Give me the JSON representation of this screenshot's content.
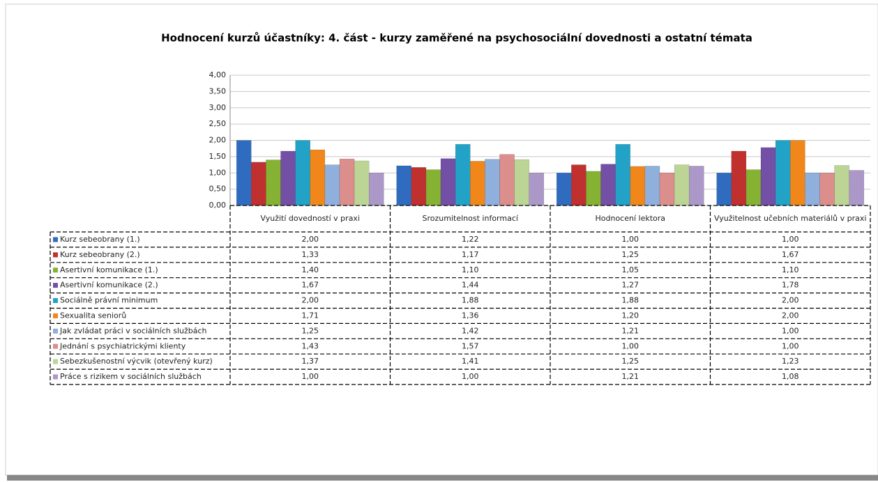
{
  "chart_data": {
    "type": "bar",
    "title": "Hodnocení kurzů účastníky: 4. část - kurzy zaměřené na psychosociální dovednosti a ostatní témata",
    "categories": [
      "Využití dovedností v praxi",
      "Srozumitelnost informací",
      "Hodnocení lektora",
      "Využitelnost učebních materiálů v praxi"
    ],
    "ylim": [
      0,
      4
    ],
    "yticks": [
      {
        "value": 0,
        "label": "0,00"
      },
      {
        "value": 0.5,
        "label": "0,50"
      },
      {
        "value": 1,
        "label": "1,00"
      },
      {
        "value": 1.5,
        "label": "1,50"
      },
      {
        "value": 2,
        "label": "2,00"
      },
      {
        "value": 2.5,
        "label": "2,50"
      },
      {
        "value": 3,
        "label": "3,00"
      },
      {
        "value": 3.5,
        "label": "3,50"
      },
      {
        "value": 4,
        "label": "4,00"
      }
    ],
    "grid": true,
    "series": [
      {
        "name": "Kurz sebeobrany (1.)",
        "color": "#2f6cc0",
        "values": [
          2.0,
          1.22,
          1.0,
          1.0
        ],
        "value_labels": [
          "2,00",
          "1,22",
          "1,00",
          "1,00"
        ]
      },
      {
        "name": "Kurz sebeobrany (2.)",
        "color": "#c0302e",
        "values": [
          1.33,
          1.17,
          1.25,
          1.67
        ],
        "value_labels": [
          "1,33",
          "1,17",
          "1,25",
          "1,67"
        ]
      },
      {
        "name": "Asertivní komunikace (1.)",
        "color": "#86b233",
        "values": [
          1.4,
          1.1,
          1.05,
          1.1
        ],
        "value_labels": [
          "1,40",
          "1,10",
          "1,05",
          "1,10"
        ]
      },
      {
        "name": "Asertivní komunikace (2.)",
        "color": "#7350a6",
        "values": [
          1.67,
          1.44,
          1.27,
          1.78
        ],
        "value_labels": [
          "1,67",
          "1,44",
          "1,27",
          "1,78"
        ]
      },
      {
        "name": "Sociálně právní minimum",
        "color": "#22a2c6",
        "values": [
          2.0,
          1.88,
          1.88,
          2.0
        ],
        "value_labels": [
          "2,00",
          "1,88",
          "1,88",
          "2,00"
        ]
      },
      {
        "name": "Sexualita seniorů",
        "color": "#f1861a",
        "values": [
          1.71,
          1.36,
          1.2,
          2.0
        ],
        "value_labels": [
          "1,71",
          "1,36",
          "1,20",
          "2,00"
        ]
      },
      {
        "name": "Jak zvládat práci v sociálních službách",
        "color": "#8fb0dc",
        "values": [
          1.25,
          1.42,
          1.21,
          1.0
        ],
        "value_labels": [
          "1,25",
          "1,42",
          "1,21",
          "1,00"
        ]
      },
      {
        "name": "Jednání s psychiatrickými klienty",
        "color": "#dc8e8c",
        "values": [
          1.43,
          1.57,
          1.0,
          1.0
        ],
        "value_labels": [
          "1,43",
          "1,57",
          "1,00",
          "1,00"
        ]
      },
      {
        "name": "Sebezkušenostní výcvik (otevřený kurz)",
        "color": "#bcd595",
        "values": [
          1.37,
          1.41,
          1.25,
          1.23
        ],
        "value_labels": [
          "1,37",
          "1,41",
          "1,25",
          "1,23"
        ]
      },
      {
        "name": "Práce s rizikem v sociálních službách",
        "color": "#ab98c8",
        "values": [
          1.0,
          1.0,
          1.21,
          1.08
        ],
        "value_labels": [
          "1,00",
          "1,00",
          "1,21",
          "1,08"
        ]
      }
    ]
  }
}
